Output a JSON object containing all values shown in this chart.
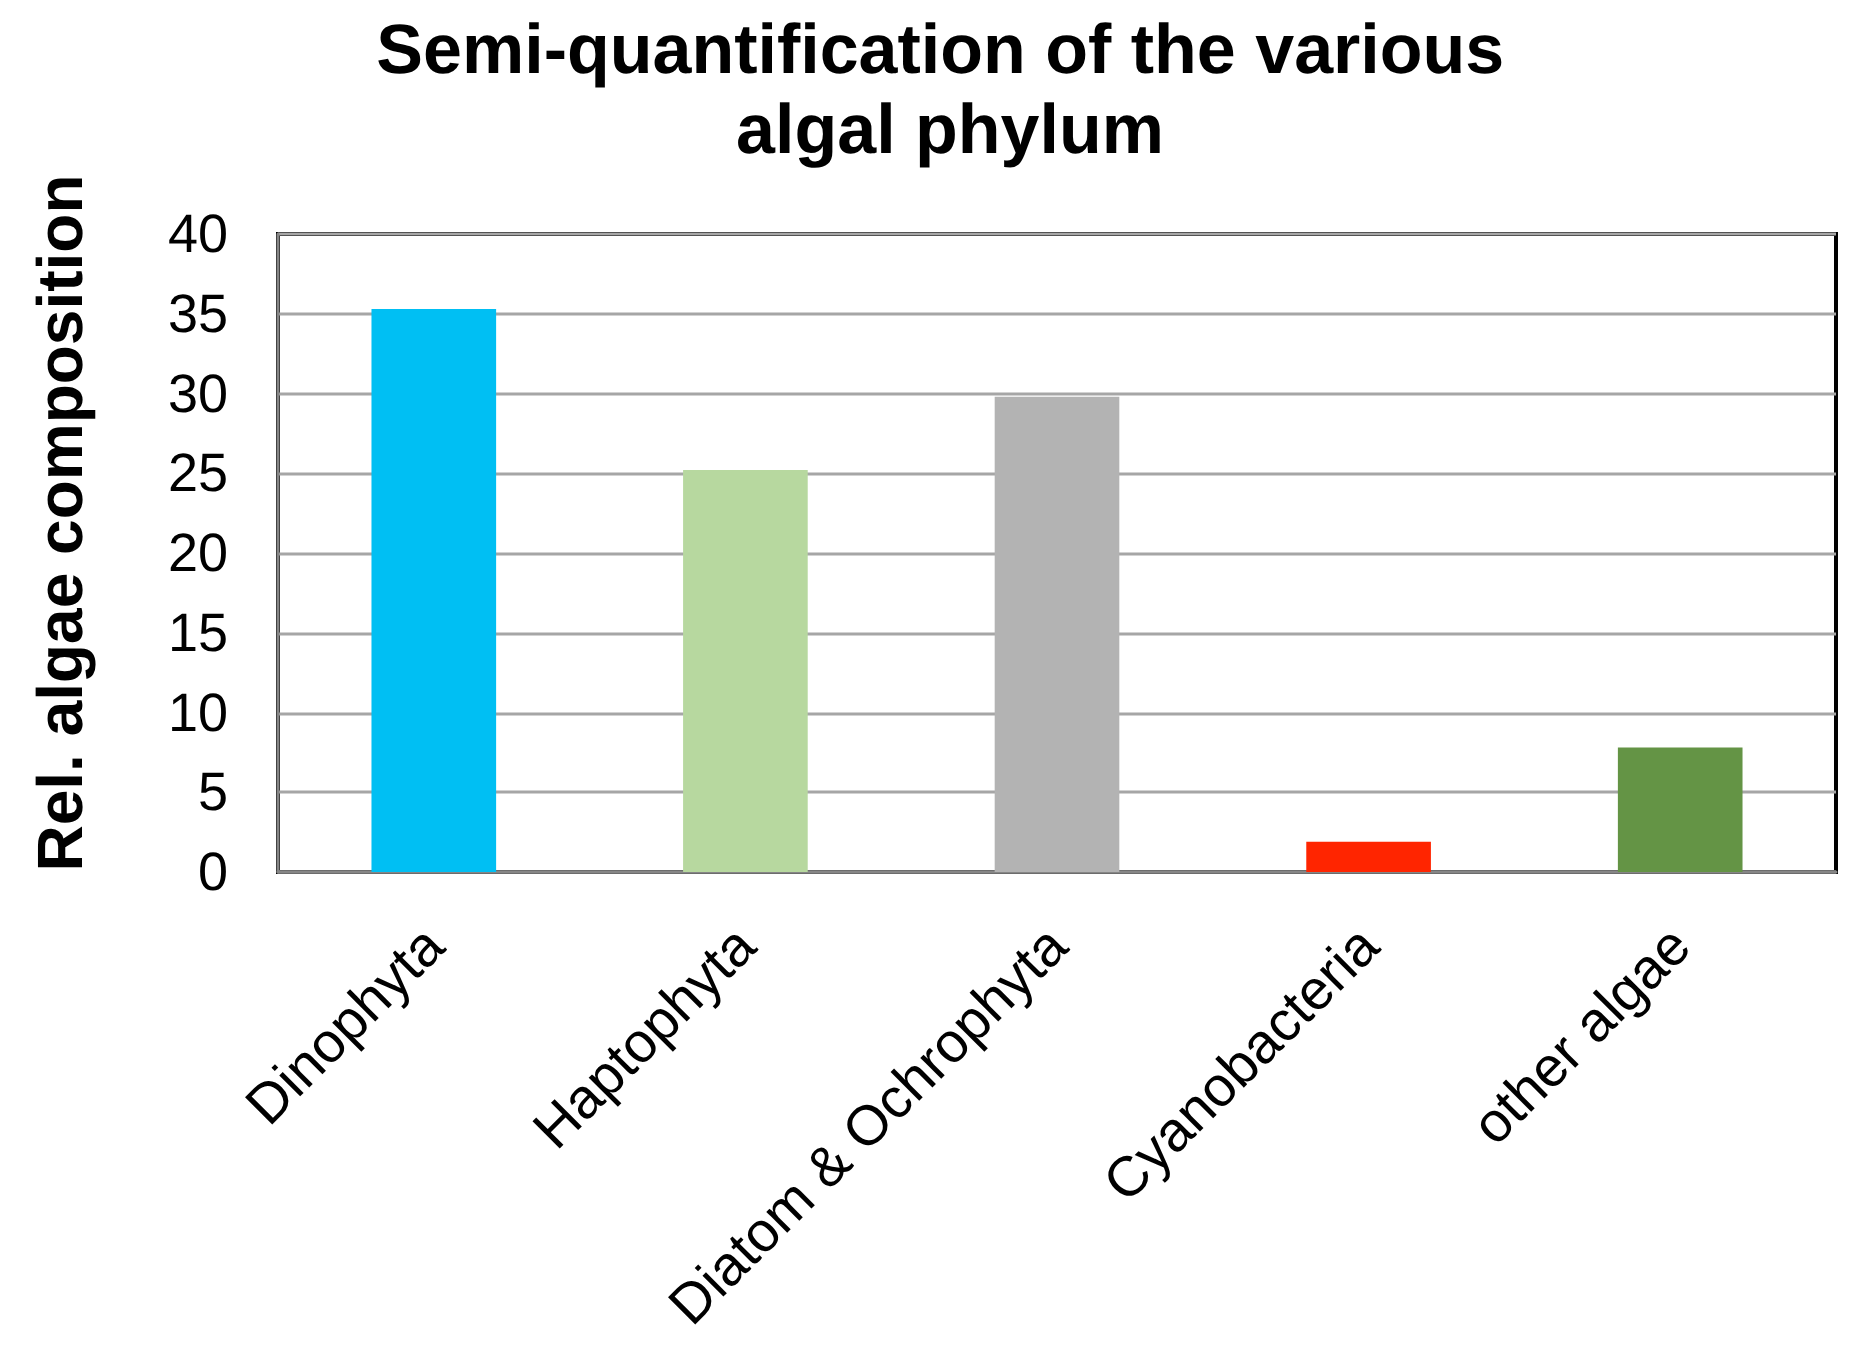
{
  "chart_data": {
    "type": "bar",
    "title": "Semi-quantification of the various algal phylum",
    "ylabel": "Rel. algae composition",
    "categories": [
      "Dinophyta",
      "Haptophyta",
      "Diatom & Ochrophyta",
      "Cyanobacteria",
      "other algae"
    ],
    "values": [
      35.3,
      25.2,
      29.8,
      1.9,
      7.8
    ],
    "colors": [
      "#00bff3",
      "#b7d89f",
      "#b3b3b3",
      "#ff2500",
      "#649445"
    ],
    "ylim": [
      0,
      40
    ],
    "yticks": [
      0,
      5,
      10,
      15,
      20,
      25,
      30,
      35,
      40
    ],
    "grid": "y"
  }
}
